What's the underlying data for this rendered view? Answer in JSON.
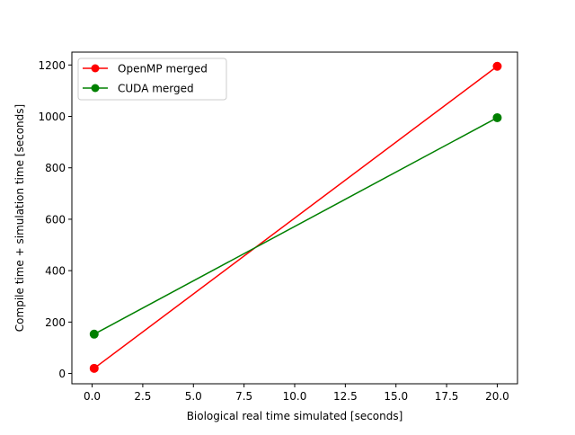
{
  "chart_data": {
    "type": "line",
    "xlabel": "Biological real time simulated [seconds]",
    "ylabel": "Compile time + simulation time [seconds]",
    "xlim": [
      -1.0,
      21.0
    ],
    "ylim": [
      -40,
      1250
    ],
    "xticks": [
      0.0,
      2.5,
      5.0,
      7.5,
      10.0,
      12.5,
      15.0,
      17.5,
      20.0
    ],
    "xtick_labels": [
      "0.0",
      "2.5",
      "5.0",
      "7.5",
      "10.0",
      "12.5",
      "15.0",
      "17.5",
      "20.0"
    ],
    "yticks": [
      0,
      200,
      400,
      600,
      800,
      1000,
      1200
    ],
    "ytick_labels": [
      "0",
      "200",
      "400",
      "600",
      "800",
      "1000",
      "1200"
    ],
    "grid": false,
    "legend_position": "top-left",
    "series": [
      {
        "name": "OpenMP merged",
        "color": "#ff0000",
        "marker": "circle",
        "x": [
          0.1,
          20.0
        ],
        "y": [
          20,
          1195
        ]
      },
      {
        "name": "CUDA merged",
        "color": "#008000",
        "marker": "circle",
        "x": [
          0.1,
          20.0
        ],
        "y": [
          153,
          995
        ]
      }
    ]
  }
}
